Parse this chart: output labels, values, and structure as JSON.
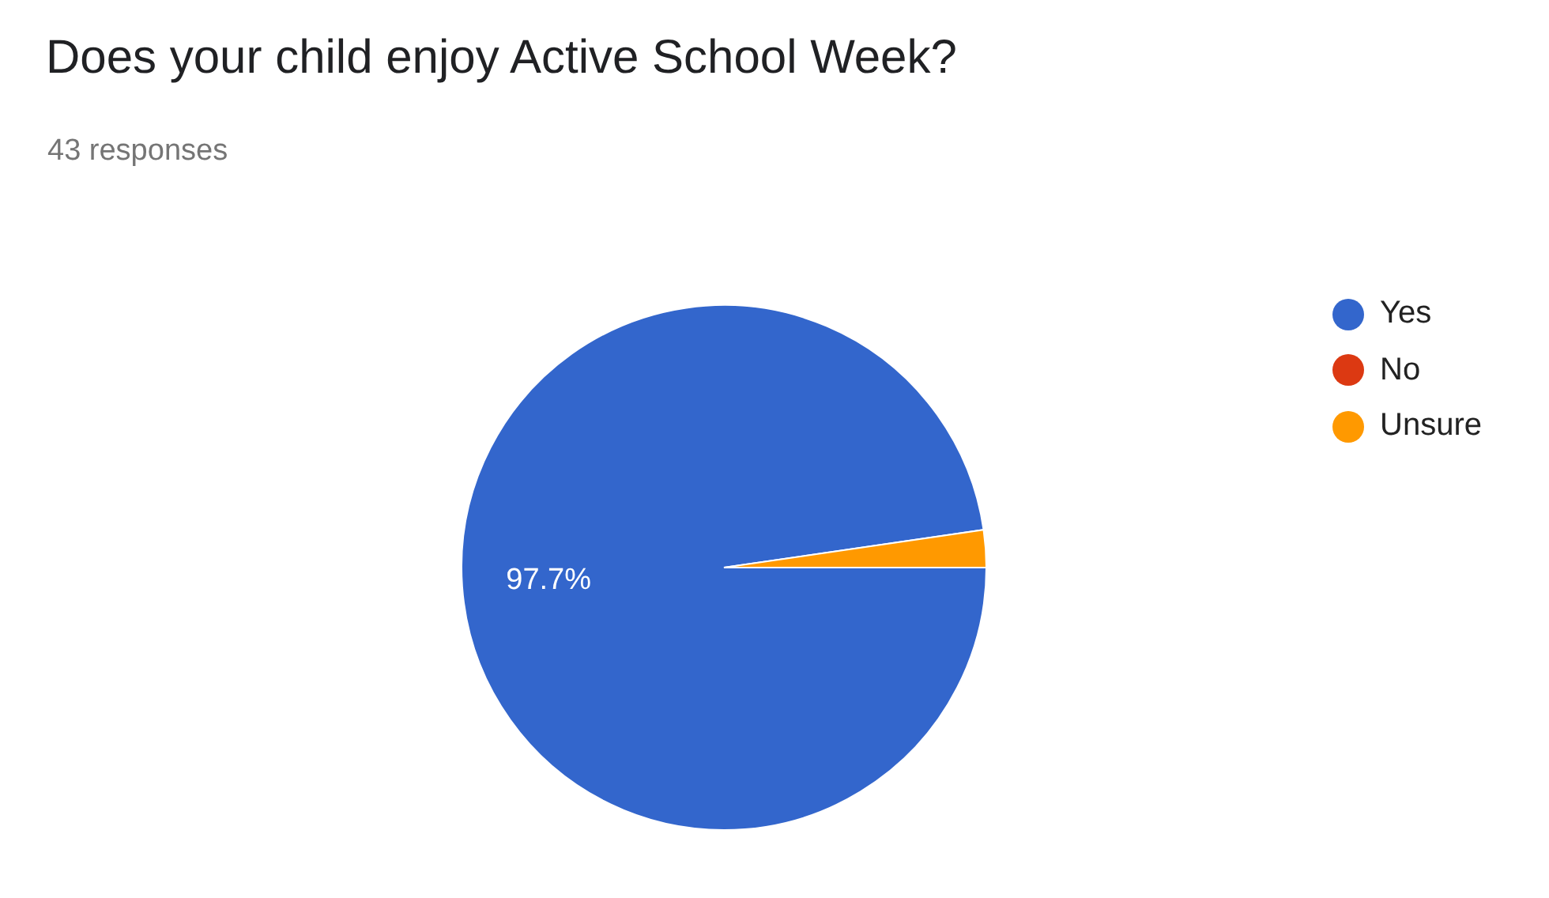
{
  "chart_data": {
    "type": "pie",
    "title": "Does your child enjoy Active School Week?",
    "subtitle": "43 responses",
    "categories": [
      "Yes",
      "No",
      "Unsure"
    ],
    "values": [
      97.7,
      0,
      2.3
    ],
    "colors": [
      "#3366cc",
      "#dc3912",
      "#ff9900"
    ],
    "value_labels": [
      "97.7%",
      null,
      null
    ],
    "legend": "right"
  }
}
